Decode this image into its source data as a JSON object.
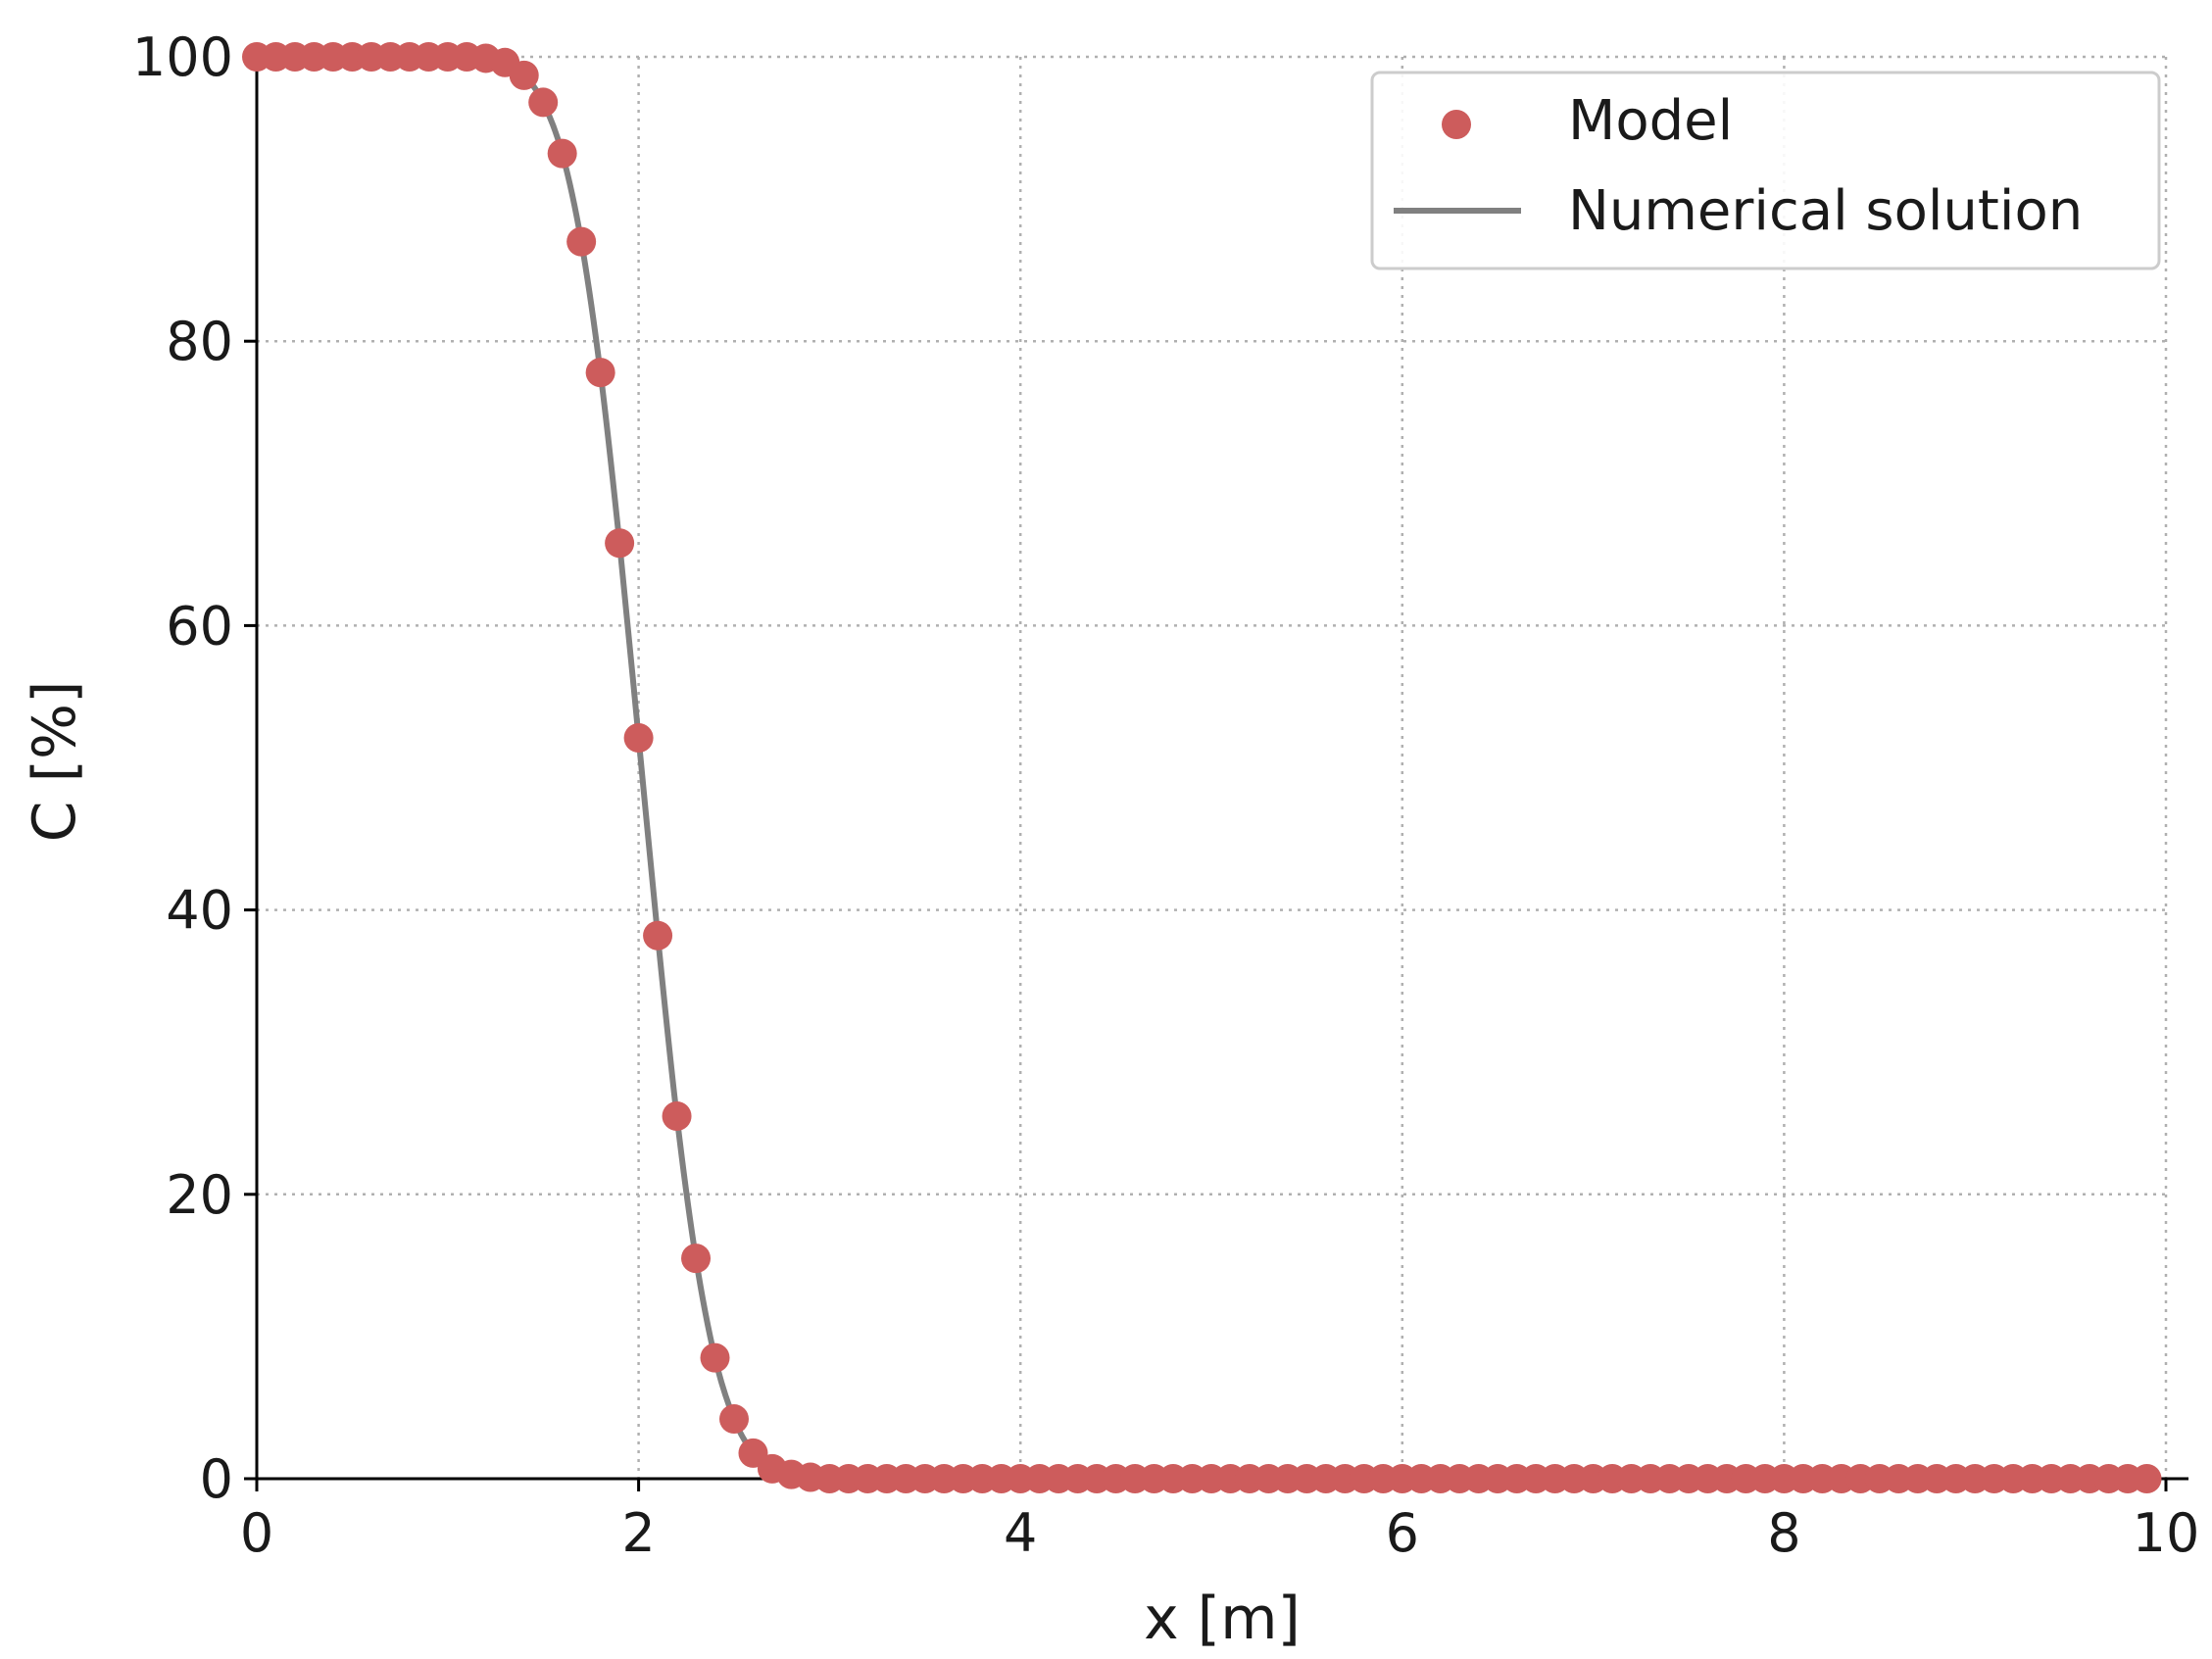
{
  "chart_data": {
    "type": "scatter",
    "title": "",
    "xlabel": "x [m]",
    "ylabel": "C [%]",
    "xlim": [
      0,
      10
    ],
    "ylim": [
      0,
      100
    ],
    "xticks": [
      "0",
      "2",
      "4",
      "6",
      "8",
      "10"
    ],
    "yticks": [
      "0",
      "20",
      "40",
      "60",
      "80",
      "100"
    ],
    "grid": true,
    "legend_position": "top-right",
    "series": [
      {
        "name": "Model",
        "style": "markers",
        "color": "#cd5c5c",
        "x": [
          0.0,
          0.1,
          0.2,
          0.3,
          0.4,
          0.5,
          0.6,
          0.7,
          0.8,
          0.9,
          1.0,
          1.1,
          1.2,
          1.3,
          1.4,
          1.5,
          1.6,
          1.7,
          1.8,
          1.9,
          2.0,
          2.1,
          2.2,
          2.3,
          2.4,
          2.5,
          2.6,
          2.7,
          2.8,
          2.9,
          3.0,
          3.1,
          3.2,
          3.3,
          3.4,
          3.5,
          3.6,
          3.7,
          3.8,
          3.9,
          4.0,
          4.1,
          4.2,
          4.3,
          4.4,
          4.5,
          4.6,
          4.7,
          4.8,
          4.9,
          5.0,
          5.1,
          5.2,
          5.3,
          5.4,
          5.5,
          5.6,
          5.7,
          5.8,
          5.9,
          6.0,
          6.1,
          6.2,
          6.3,
          6.4,
          6.5,
          6.6,
          6.7,
          6.8,
          6.9,
          7.0,
          7.1,
          7.2,
          7.3,
          7.4,
          7.5,
          7.6,
          7.7,
          7.8,
          7.9,
          8.0,
          8.1,
          8.2,
          8.3,
          8.4,
          8.5,
          8.6,
          8.7,
          8.8,
          8.9,
          9.0,
          9.1,
          9.2,
          9.3,
          9.4,
          9.5,
          9.6,
          9.7,
          9.8,
          9.9
        ],
        "y": [
          100,
          100,
          100,
          100,
          100,
          100,
          100,
          100,
          100,
          100,
          100,
          100,
          99.9,
          99.6,
          98.7,
          96.8,
          93.2,
          87.0,
          77.8,
          65.8,
          52.1,
          38.2,
          25.5,
          15.5,
          8.5,
          4.2,
          1.8,
          0.7,
          0.3,
          0.1,
          0,
          0,
          0,
          0,
          0,
          0,
          0,
          0,
          0,
          0,
          0,
          0,
          0,
          0,
          0,
          0,
          0,
          0,
          0,
          0,
          0,
          0,
          0,
          0,
          0,
          0,
          0,
          0,
          0,
          0,
          0,
          0,
          0,
          0,
          0,
          0,
          0,
          0,
          0,
          0,
          0,
          0,
          0,
          0,
          0,
          0,
          0,
          0,
          0,
          0,
          0,
          0,
          0,
          0,
          0,
          0,
          0,
          0,
          0,
          0,
          0,
          0,
          0,
          0,
          0,
          0,
          0,
          0,
          0,
          0
        ]
      },
      {
        "name": "Numerical solution",
        "style": "line",
        "color": "#808080",
        "x": [
          0.0,
          1.0,
          1.2,
          1.3,
          1.4,
          1.5,
          1.6,
          1.7,
          1.8,
          1.9,
          2.0,
          2.1,
          2.2,
          2.3,
          2.4,
          2.5,
          2.6,
          2.7,
          2.8,
          2.9,
          3.0,
          4.0,
          6.0,
          8.0,
          9.9
        ],
        "y": [
          100,
          100,
          99.9,
          99.6,
          98.7,
          96.8,
          93.2,
          87.0,
          77.8,
          65.8,
          52.1,
          38.2,
          25.5,
          15.5,
          8.5,
          4.2,
          1.8,
          0.7,
          0.3,
          0.1,
          0,
          0,
          0,
          0,
          0
        ]
      }
    ]
  }
}
